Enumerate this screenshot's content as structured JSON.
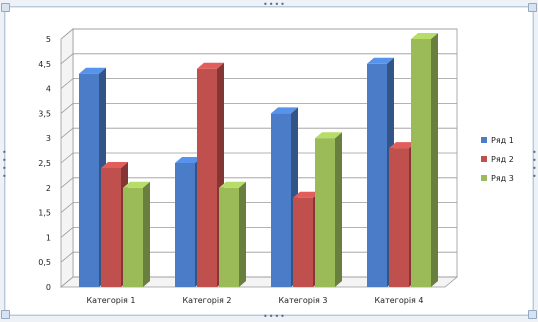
{
  "chart_data": {
    "type": "bar",
    "title": "",
    "xlabel": "",
    "ylabel": "",
    "ylim": [
      0,
      5
    ],
    "y_ticks": [
      "0",
      "0,5",
      "1",
      "1,5",
      "2",
      "2,5",
      "3",
      "3,5",
      "4",
      "4,5",
      "5"
    ],
    "categories": [
      "Категорія 1",
      "Категорія 2",
      "Категорія 3",
      "Категорія 4"
    ],
    "series": [
      {
        "name": "Ряд 1",
        "values": [
          4.3,
          2.5,
          3.5,
          4.5
        ],
        "color": "#4a7cc7"
      },
      {
        "name": "Ряд 2",
        "values": [
          2.4,
          4.4,
          1.8,
          2.8
        ],
        "color": "#c0504d"
      },
      {
        "name": "Ряд 3",
        "values": [
          2.0,
          2.0,
          3.0,
          5.0
        ],
        "color": "#9bbb59"
      }
    ],
    "grid": true,
    "legend_position": "right",
    "style": "3d-clustered-column"
  }
}
